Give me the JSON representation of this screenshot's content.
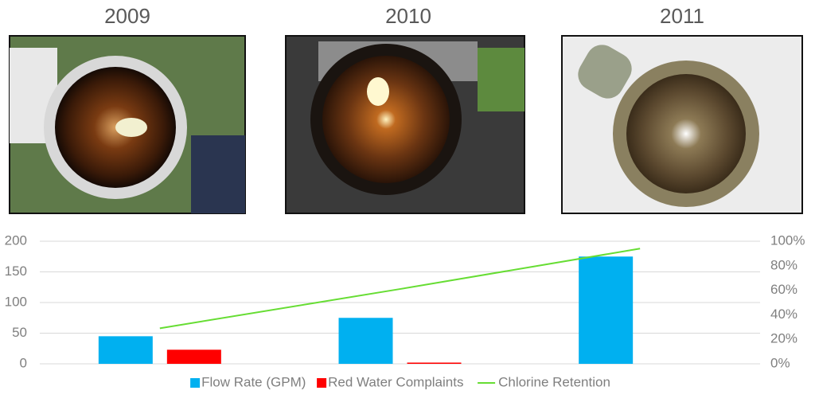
{
  "chart_data": {
    "type": "bar",
    "categories": [
      "2009",
      "2010",
      "2011"
    ],
    "series": [
      {
        "name": "Flow Rate (GPM)",
        "color": "#00b0f0",
        "values": [
          45,
          75,
          175
        ]
      },
      {
        "name": "Red Water Complaints",
        "color": "#ff0000",
        "values": [
          23,
          2,
          0
        ]
      },
      {
        "name": "Chlorine Retention",
        "type": "line",
        "color": "#66dd33",
        "axis": "y2",
        "values": [
          29,
          61,
          94
        ]
      }
    ],
    "ylim": [
      0,
      200
    ],
    "yticks": [
      0,
      50,
      100,
      150,
      200
    ],
    "y2lim": [
      0,
      100
    ],
    "y2ticks": [
      {
        "value": 0,
        "label": "0%"
      },
      {
        "value": 20,
        "label": "20%"
      },
      {
        "value": 40,
        "label": "40%"
      },
      {
        "value": 60,
        "label": "60%"
      },
      {
        "value": 80,
        "label": "80%"
      },
      {
        "value": 100,
        "label": "100%"
      }
    ],
    "grid": true,
    "legend": "bottom"
  }
}
